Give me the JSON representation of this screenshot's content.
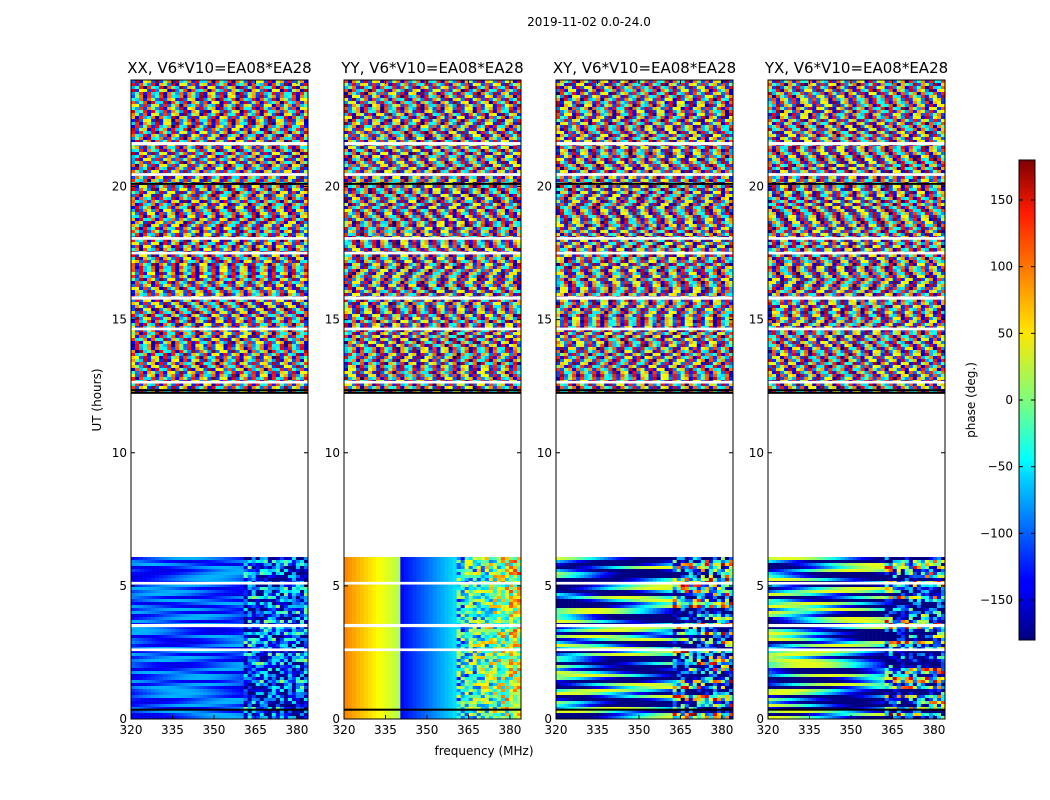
{
  "figure": {
    "suptitle": "2019-11-02 0.0-24.0"
  },
  "colors": {
    "no_data": "#ffffff",
    "flag_line": "#000000",
    "colormap": "jet"
  },
  "chart_data": {
    "type": "heatmap",
    "xlabel": "frequency (MHz)",
    "ylabel": "UT (hours)",
    "xlim": [
      320,
      384
    ],
    "ylim": [
      0,
      24
    ],
    "xticks": [
      320,
      335,
      350,
      365,
      380
    ],
    "yticks": [
      0,
      5,
      10,
      15,
      20
    ],
    "colorbar": {
      "label": "phase (deg.)",
      "range": [
        -180,
        180
      ],
      "ticks": [
        150,
        100,
        50,
        0,
        -50,
        -100,
        -150
      ],
      "tick_labels": [
        "150",
        "100",
        "50",
        "0",
        "−50",
        "−100",
        "−150"
      ]
    },
    "no_data_intervals_hours": [
      [
        6.1,
        12.3
      ]
    ],
    "panels": [
      {
        "title": "XX, V6*V10=EA08*EA28",
        "polarization": "XX"
      },
      {
        "title": "YY, V6*V10=EA08*EA28",
        "polarization": "YY"
      },
      {
        "title": "XY, V6*V10=EA08*EA28",
        "polarization": "XY"
      },
      {
        "title": "YX, V6*V10=EA08*EA28",
        "polarization": "YX"
      }
    ]
  }
}
